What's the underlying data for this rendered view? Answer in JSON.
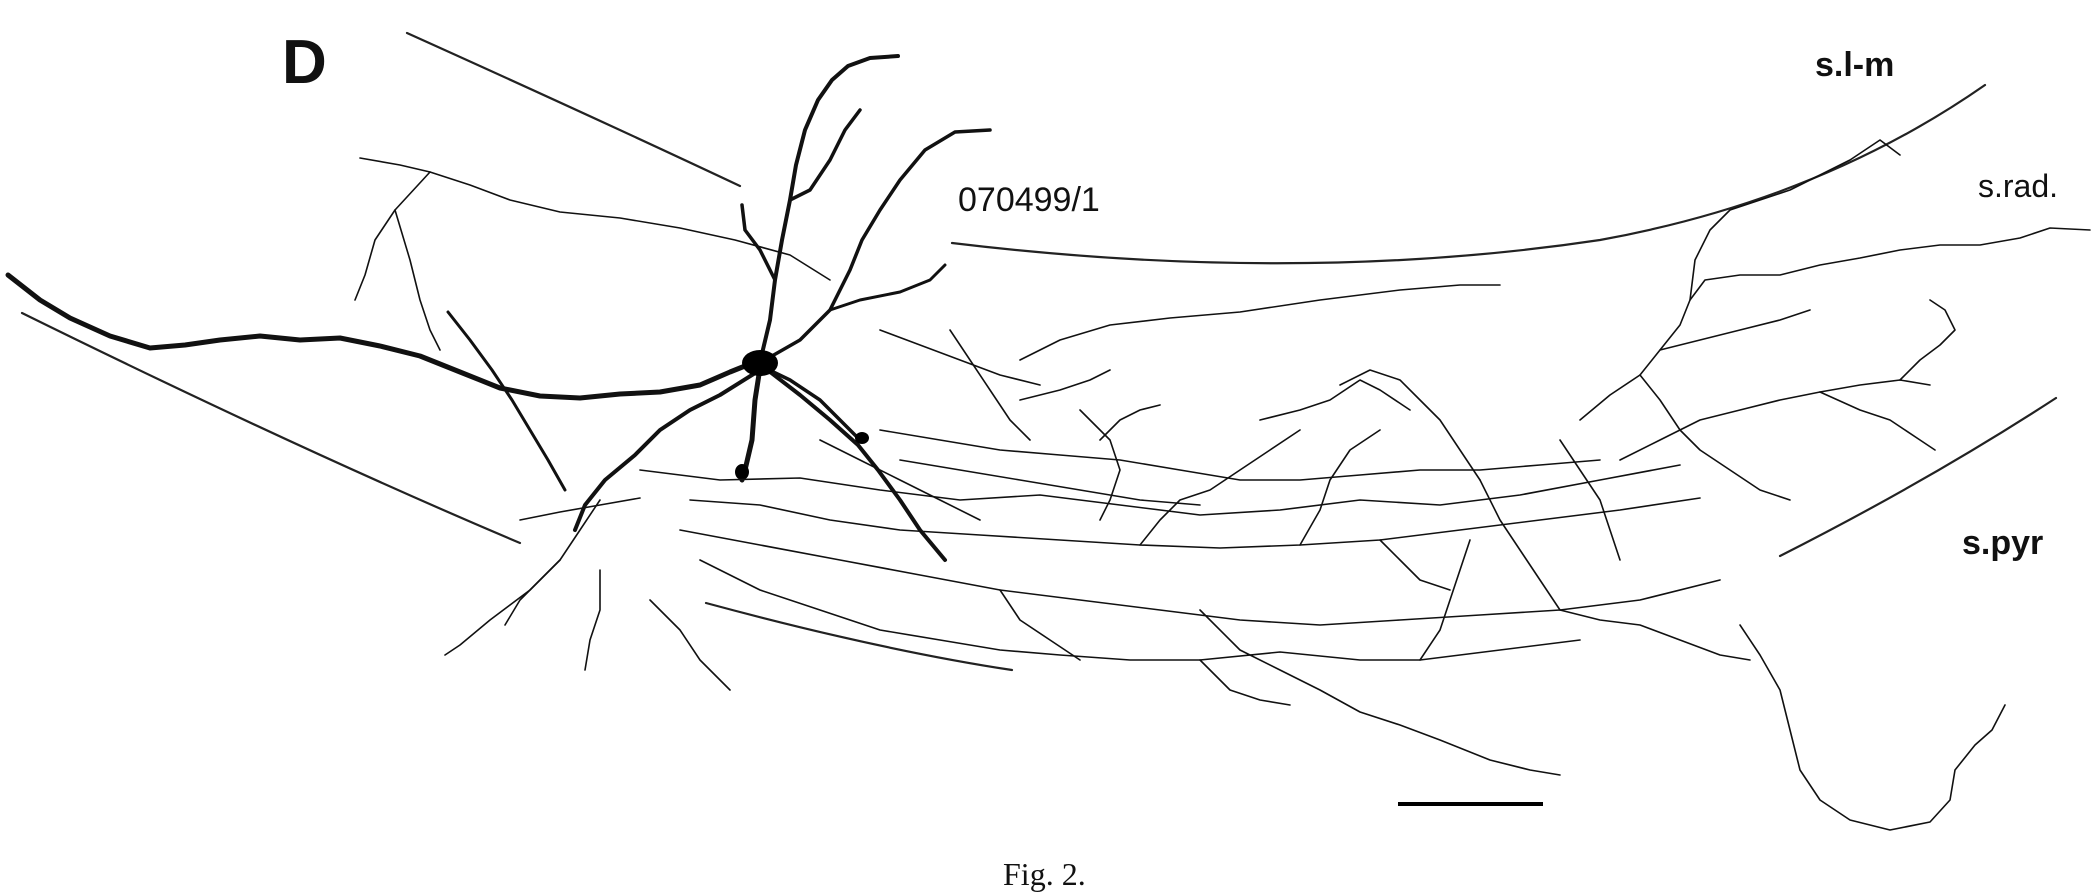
{
  "figure": {
    "panel_label": "D",
    "cell_id": "070499/1",
    "layers": {
      "slm": "s.l-m",
      "srad": "s.rad.",
      "spyr": "s.pyr"
    },
    "caption": "Fig. 2."
  },
  "colors": {
    "ink": "#111111",
    "background": "#ffffff"
  }
}
